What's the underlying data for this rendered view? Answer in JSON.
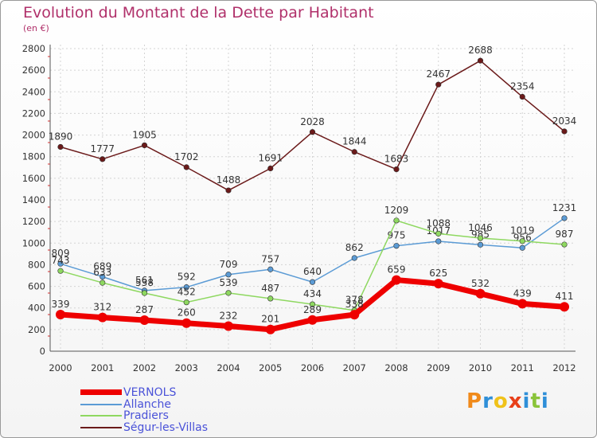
{
  "chart_data": {
    "type": "line",
    "title": "Evolution du Montant de la Dette par Habitant",
    "subtitle": "(en €)",
    "x": [
      "2000",
      "2001",
      "2002",
      "2003",
      "2004",
      "2005",
      "2006",
      "2007",
      "2008",
      "2009",
      "2010",
      "2011",
      "2012"
    ],
    "ylim": [
      0,
      2800
    ],
    "yticks": [
      0,
      200,
      400,
      600,
      800,
      1000,
      1200,
      1400,
      1600,
      1800,
      2000,
      2200,
      2400,
      2600,
      2800
    ],
    "grid": "vertical and horizontal dashed",
    "series": [
      {
        "name": "Ségur-les-Villas",
        "color": "#6b1a1a",
        "values": [
          1890,
          1777,
          1905,
          1702,
          1488,
          1691,
          2028,
          1844,
          1683,
          2467,
          2688,
          2354,
          2034
        ]
      },
      {
        "name": "Allanche",
        "color": "#5b9bd5",
        "values": [
          809,
          689,
          561,
          592,
          709,
          757,
          640,
          862,
          975,
          1017,
          985,
          956,
          1231
        ]
      },
      {
        "name": "Pradiers",
        "color": "#8ed860",
        "values": [
          743,
          633,
          538,
          452,
          539,
          487,
          434,
          378,
          1209,
          1088,
          1046,
          1019,
          987
        ]
      },
      {
        "name": "VERNOLS",
        "color": "#ee0000",
        "values": [
          339,
          312,
          287,
          260,
          232,
          201,
          289,
          338,
          659,
          625,
          532,
          439,
          411
        ]
      }
    ],
    "legend_placement": "bottom-left"
  },
  "legend": [
    {
      "label": "VERNOLS",
      "color": "#ee0000",
      "thickness": 7
    },
    {
      "label": "Allanche",
      "color": "#5b9bd5",
      "thickness": 2
    },
    {
      "label": "Pradiers",
      "color": "#8ed860",
      "thickness": 2
    },
    {
      "label": "Ségur-les-Villas",
      "color": "#6b1a1a",
      "thickness": 2
    }
  ],
  "logo": {
    "text": "Proxiti",
    "letters": [
      {
        "ch": "P",
        "color": "#f08a1a"
      },
      {
        "ch": "r",
        "color": "#2f8fd8"
      },
      {
        "ch": "o",
        "color": "#f0c21a"
      },
      {
        "ch": "x",
        "color": "#e8401a"
      },
      {
        "ch": "i",
        "color": "#2f8fd8"
      },
      {
        "ch": "t",
        "color": "#8ac43a"
      },
      {
        "ch": "i",
        "color": "#2f8fd8"
      }
    ]
  }
}
